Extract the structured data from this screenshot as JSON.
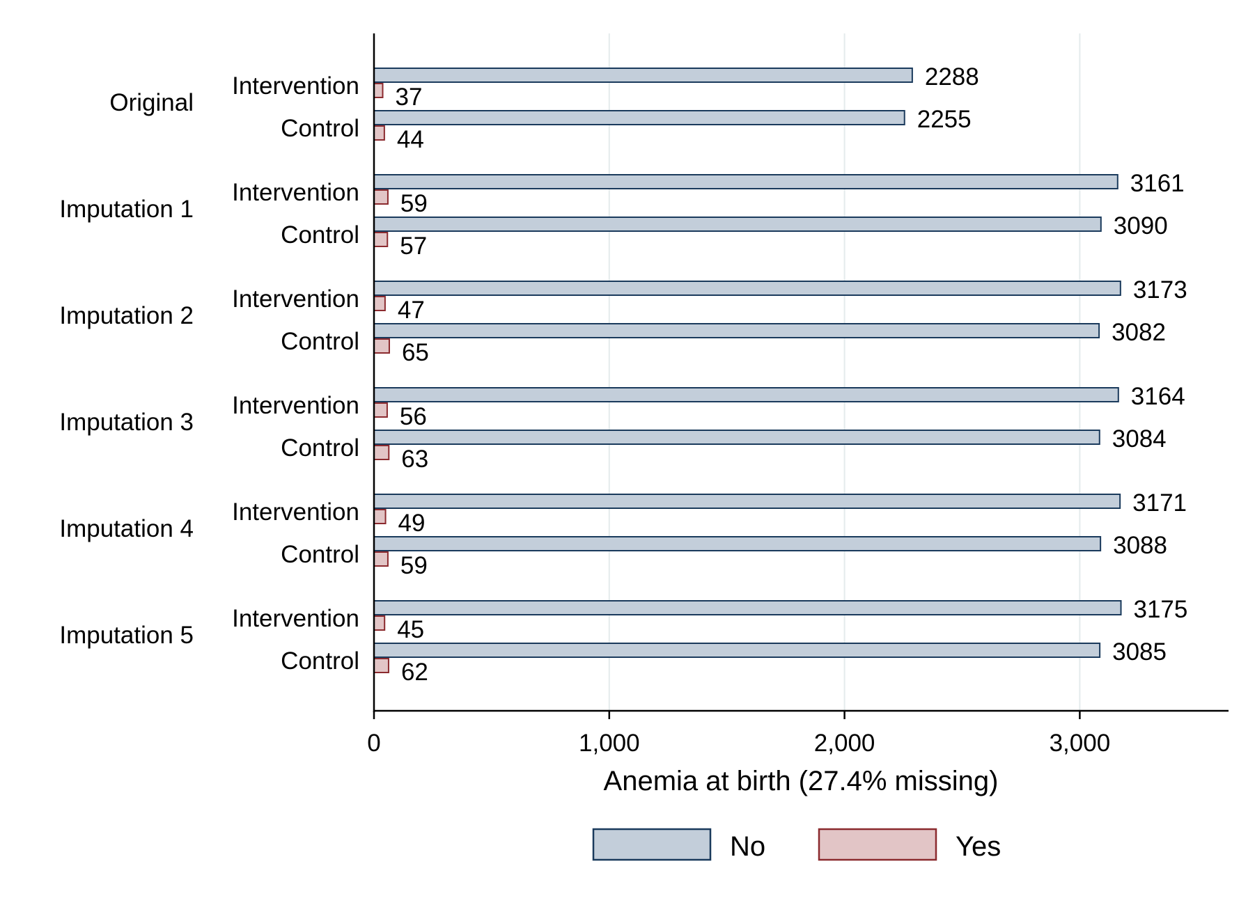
{
  "chart_data": {
    "type": "bar",
    "orientation": "horizontal",
    "title": "",
    "xlabel": "Anemia at birth (27.4% missing)",
    "xlim": [
      0,
      3650
    ],
    "xticks": [
      0,
      1000,
      2000,
      3000
    ],
    "xtick_labels": [
      "0",
      "1,000",
      "2,000",
      "3,000"
    ],
    "grid": true,
    "legend_position": "bottom",
    "colors": {
      "No": {
        "fill": "#c3ceda",
        "stroke": "#1a3a5c"
      },
      "Yes": {
        "fill": "#e2c5c6",
        "stroke": "#8b2a2e"
      }
    },
    "series_names": [
      "No",
      "Yes"
    ],
    "groups": [
      {
        "label": "Original",
        "categories": [
          {
            "label": "Intervention",
            "values": [
              2288,
              37
            ]
          },
          {
            "label": "Control",
            "values": [
              2255,
              44
            ]
          }
        ]
      },
      {
        "label": "Imputation 1",
        "categories": [
          {
            "label": "Intervention",
            "values": [
              3161,
              59
            ]
          },
          {
            "label": "Control",
            "values": [
              3090,
              57
            ]
          }
        ]
      },
      {
        "label": "Imputation 2",
        "categories": [
          {
            "label": "Intervention",
            "values": [
              3173,
              47
            ]
          },
          {
            "label": "Control",
            "values": [
              3082,
              65
            ]
          }
        ]
      },
      {
        "label": "Imputation 3",
        "categories": [
          {
            "label": "Intervention",
            "values": [
              3164,
              56
            ]
          },
          {
            "label": "Control",
            "values": [
              3084,
              63
            ]
          }
        ]
      },
      {
        "label": "Imputation 4",
        "categories": [
          {
            "label": "Intervention",
            "values": [
              3171,
              49
            ]
          },
          {
            "label": "Control",
            "values": [
              3088,
              59
            ]
          }
        ]
      },
      {
        "label": "Imputation 5",
        "categories": [
          {
            "label": "Intervention",
            "values": [
              3175,
              45
            ]
          },
          {
            "label": "Control",
            "values": [
              3085,
              62
            ]
          }
        ]
      }
    ]
  }
}
